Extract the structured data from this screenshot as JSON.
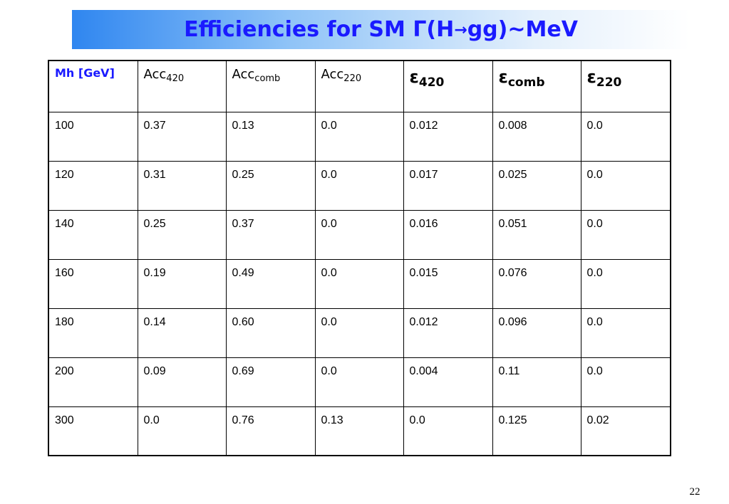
{
  "slide": {
    "title_prefix": "Efficiencies for SM Γ(H",
    "title_arrow": "→",
    "title_suffix": "gg)~MeV",
    "page_number": "22"
  },
  "table": {
    "headers": [
      {
        "main": "Mh [GeV]",
        "sub": ""
      },
      {
        "main": "Acc",
        "sub": "420"
      },
      {
        "main": "Acc",
        "sub": "comb"
      },
      {
        "main": "Acc",
        "sub": "220"
      },
      {
        "main": "ε",
        "sub": "420"
      },
      {
        "main": "ε",
        "sub": "comb"
      },
      {
        "main": "ε",
        "sub": "220"
      }
    ],
    "rows": [
      [
        "100",
        "0.37",
        "0.13",
        "0.0",
        "0.012",
        "0.008",
        "0.0"
      ],
      [
        "120",
        "0.31",
        "0.25",
        "0.0",
        "0.017",
        "0.025",
        "0.0"
      ],
      [
        "140",
        "0.25",
        "0.37",
        "0.0",
        "0.016",
        "0.051",
        "0.0"
      ],
      [
        "160",
        "0.19",
        "0.49",
        "0.0",
        "0.015",
        "0.076",
        "0.0"
      ],
      [
        "180",
        "0.14",
        "0.60",
        "0.0",
        "0.012",
        "0.096",
        "0.0"
      ],
      [
        "200",
        "0.09",
        "0.69",
        "0.0",
        "0.004",
        "0.11",
        "0.0"
      ],
      [
        "300",
        "0.0",
        "0.76",
        "0.13",
        "0.0",
        "0.125",
        "0.02"
      ]
    ]
  },
  "colors": {
    "title_text": "#1a1aff",
    "title_gradient_start": "#2f86f0",
    "header_mh": "#1a1aff"
  }
}
